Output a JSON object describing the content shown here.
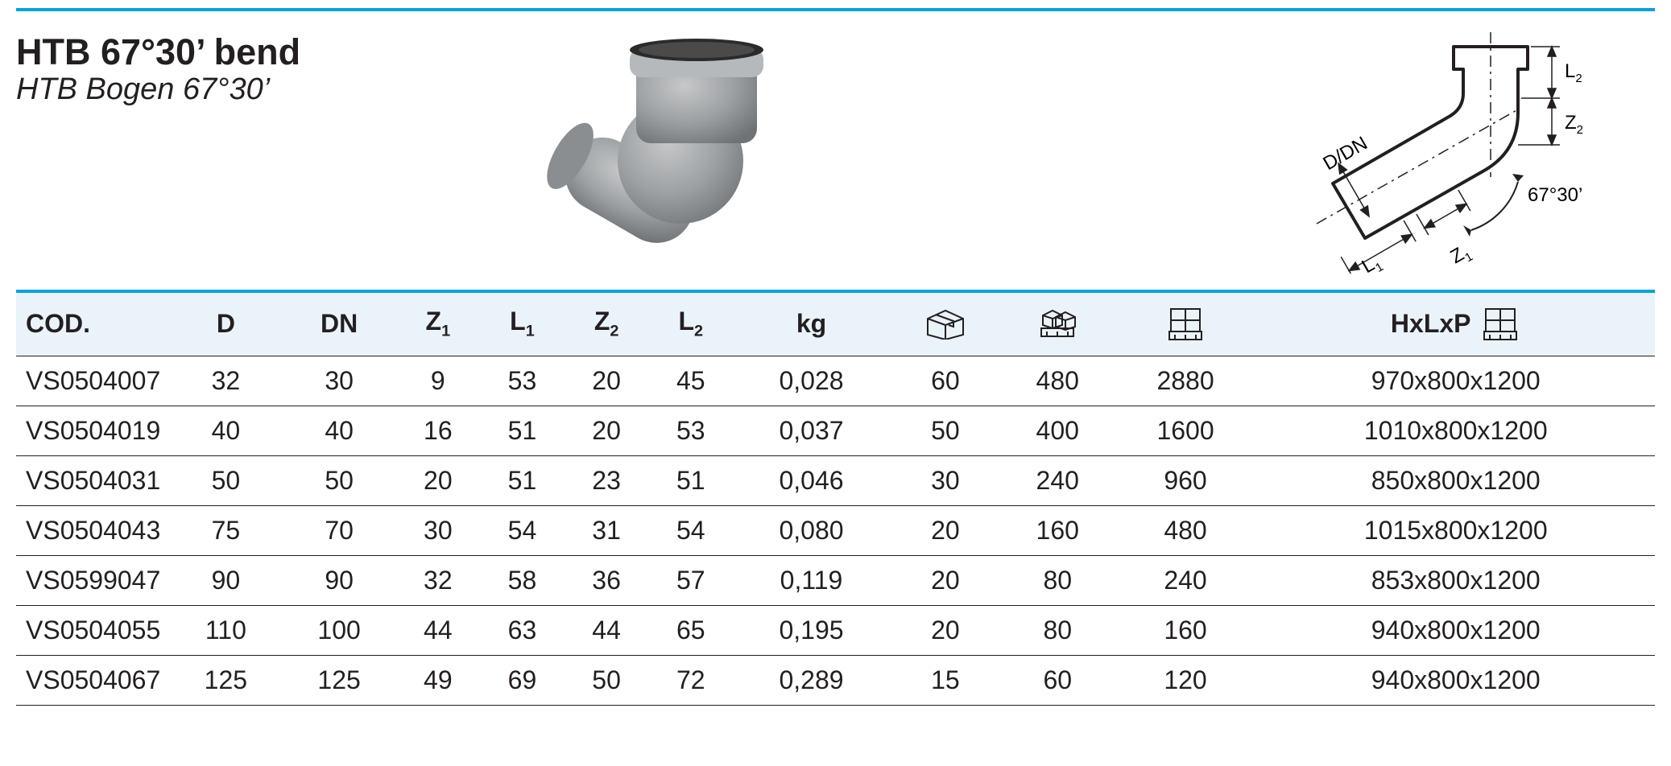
{
  "colors": {
    "accent": "#00a3e0",
    "text": "#231f20",
    "header_bg": "#eaf3f9",
    "row_border": "#231f20",
    "fitting_grey": "#9da0a2",
    "fitting_shadow": "#6f7274",
    "ring_black": "#2b2b2b"
  },
  "title": {
    "main": "HTB 67°30’ bend",
    "sub": "HTB Bogen 67°30’"
  },
  "diagram": {
    "angle_label": "67°30’",
    "dim_l1": "L",
    "dim_l1_sub": "1",
    "dim_z1": "Z",
    "dim_z1_sub": "1",
    "dim_l2": "L",
    "dim_l2_sub": "2",
    "dim_z2": "Z",
    "dim_z2_sub": "2",
    "dim_ddn": "D/DN"
  },
  "table": {
    "headers": {
      "cod": "COD.",
      "d": "D",
      "dn": "DN",
      "z1": "Z",
      "z1_sub": "1",
      "l1": "L",
      "l1_sub": "1",
      "z2": "Z",
      "z2_sub": "2",
      "l2": "L",
      "l2_sub": "2",
      "kg": "kg",
      "hxl": "HxLxP"
    },
    "rows": [
      {
        "cod": "VS0504007",
        "d": "32",
        "dn": "30",
        "z1": "9",
        "l1": "53",
        "z2": "20",
        "l2": "45",
        "kg": "0,028",
        "box": "60",
        "layer": "480",
        "pallet": "2880",
        "hxl": "970x800x1200"
      },
      {
        "cod": "VS0504019",
        "d": "40",
        "dn": "40",
        "z1": "16",
        "l1": "51",
        "z2": "20",
        "l2": "53",
        "kg": "0,037",
        "box": "50",
        "layer": "400",
        "pallet": "1600",
        "hxl": "1010x800x1200"
      },
      {
        "cod": "VS0504031",
        "d": "50",
        "dn": "50",
        "z1": "20",
        "l1": "51",
        "z2": "23",
        "l2": "51",
        "kg": "0,046",
        "box": "30",
        "layer": "240",
        "pallet": "960",
        "hxl": "850x800x1200"
      },
      {
        "cod": "VS0504043",
        "d": "75",
        "dn": "70",
        "z1": "30",
        "l1": "54",
        "z2": "31",
        "l2": "54",
        "kg": "0,080",
        "box": "20",
        "layer": "160",
        "pallet": "480",
        "hxl": "1015x800x1200"
      },
      {
        "cod": "VS0599047",
        "d": "90",
        "dn": "90",
        "z1": "32",
        "l1": "58",
        "z2": "36",
        "l2": "57",
        "kg": "0,119",
        "box": "20",
        "layer": "80",
        "pallet": "240",
        "hxl": "853x800x1200"
      },
      {
        "cod": "VS0504055",
        "d": "110",
        "dn": "100",
        "z1": "44",
        "l1": "63",
        "z2": "44",
        "l2": "65",
        "kg": "0,195",
        "box": "20",
        "layer": "80",
        "pallet": "160",
        "hxl": "940x800x1200"
      },
      {
        "cod": "VS0504067",
        "d": "125",
        "dn": "125",
        "z1": "49",
        "l1": "69",
        "z2": "50",
        "l2": "72",
        "kg": "0,289",
        "box": "15",
        "layer": "60",
        "pallet": "120",
        "hxl": "940x800x1200"
      }
    ]
  }
}
